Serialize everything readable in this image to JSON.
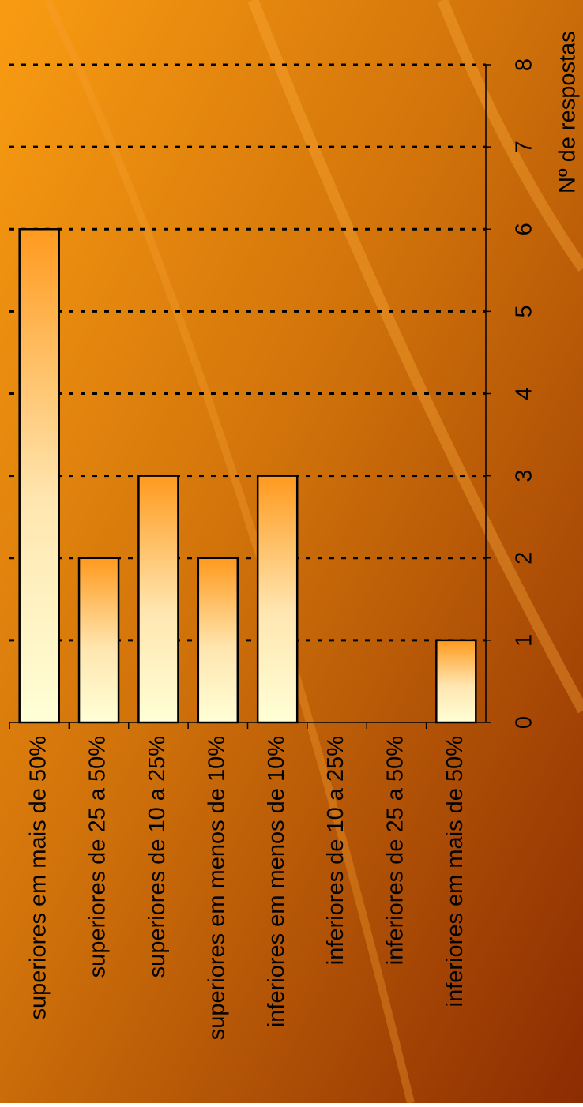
{
  "chart_data": {
    "type": "bar",
    "categories": [
      "superiores em mais de 50%",
      "superiores de 25 a 50%",
      "superiores de 10 a 25%",
      "superiores em menos de 10%",
      "inferiores em menos de 10%",
      "inferiores de 10 a 25%",
      "inferiores de 25 a 50%",
      "inferiores em mais de 50%"
    ],
    "values": [
      6,
      2,
      3,
      2,
      3,
      0,
      0,
      1
    ],
    "color": "#ff9a1e",
    "y_label": "Nº de respostas",
    "ylim": [
      0,
      8
    ],
    "yticks": [
      0,
      1,
      2,
      3,
      4,
      5,
      6,
      7,
      8
    ],
    "grid": true
  }
}
